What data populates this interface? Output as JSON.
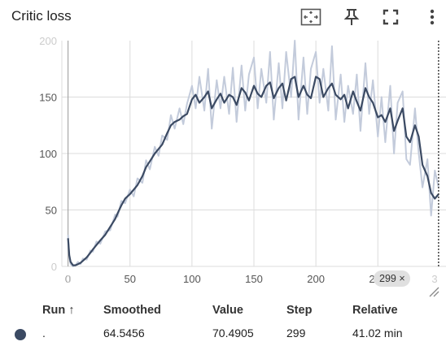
{
  "card": {
    "title": "Critic loss"
  },
  "toolbar": {
    "icons": [
      "fit-domain-icon",
      "pin-icon",
      "fullscreen-icon",
      "more-vert-icon"
    ]
  },
  "colors": {
    "line": "#3b4a63",
    "raw_line": "#c3cbdb",
    "grid": "#dcdcdc",
    "axis_text": "#555555",
    "axis_text_faint": "#cccccc",
    "badge_bg": "#e0e0e0"
  },
  "chart_data": {
    "type": "line",
    "title": "Critic loss",
    "xlabel": "",
    "ylabel": "",
    "xlim": [
      -5,
      305
    ],
    "ylim": [
      0,
      200
    ],
    "x_ticks": [
      "0",
      "50",
      "100",
      "150",
      "200",
      "250"
    ],
    "x_ticks_faint": [
      "0",
      "3"
    ],
    "y_ticks": [
      "50",
      "100",
      "150"
    ],
    "y_ticks_faint": [
      "0",
      "200"
    ],
    "grid": true,
    "legend": "none",
    "cursor_step": 299,
    "cursor_label": "299 ×",
    "series": [
      {
        "role": "smoothed",
        "x": [
          0,
          1,
          2,
          4,
          6,
          8,
          10,
          12,
          15,
          18,
          20,
          23,
          26,
          30,
          34,
          38,
          40,
          43,
          46,
          50,
          53,
          56,
          60,
          63,
          66,
          70,
          73,
          76,
          80,
          83,
          86,
          90,
          93,
          96,
          100,
          103,
          106,
          110,
          113,
          116,
          120,
          123,
          126,
          130,
          133,
          136,
          140,
          143,
          146,
          150,
          153,
          156,
          160,
          163,
          166,
          170,
          173,
          176,
          180,
          183,
          186,
          190,
          193,
          196,
          200,
          203,
          206,
          210,
          213,
          216,
          220,
          223,
          226,
          230,
          233,
          236,
          240,
          243,
          246,
          250,
          253,
          256,
          260,
          263,
          266,
          270,
          273,
          276,
          280,
          283,
          286,
          290,
          293,
          296,
          299
        ],
        "y": [
          25,
          10,
          4,
          1,
          1,
          2,
          3,
          5,
          8,
          12,
          15,
          19,
          23,
          28,
          35,
          42,
          47,
          54,
          60,
          64,
          68,
          72,
          80,
          88,
          93,
          100,
          104,
          108,
          118,
          125,
          128,
          130,
          133,
          135,
          148,
          152,
          145,
          150,
          155,
          140,
          148,
          153,
          145,
          152,
          150,
          143,
          158,
          154,
          147,
          160,
          153,
          150,
          160,
          163,
          149,
          158,
          162,
          147,
          166,
          168,
          150,
          160,
          152,
          149,
          168,
          166,
          150,
          158,
          162,
          152,
          148,
          152,
          140,
          155,
          146,
          138,
          158,
          150,
          145,
          132,
          134,
          128,
          140,
          120,
          129,
          140,
          115,
          110,
          125,
          115,
          90,
          80,
          65,
          60,
          64
        ]
      },
      {
        "role": "raw",
        "x": [
          0,
          1,
          2,
          4,
          6,
          8,
          10,
          12,
          15,
          18,
          20,
          23,
          26,
          30,
          34,
          38,
          40,
          43,
          46,
          50,
          53,
          56,
          60,
          63,
          66,
          70,
          73,
          76,
          80,
          83,
          86,
          90,
          93,
          96,
          100,
          103,
          106,
          110,
          113,
          116,
          120,
          123,
          126,
          130,
          133,
          136,
          140,
          143,
          146,
          150,
          153,
          156,
          160,
          163,
          166,
          170,
          173,
          176,
          180,
          183,
          186,
          190,
          193,
          196,
          200,
          203,
          206,
          210,
          213,
          216,
          220,
          223,
          226,
          230,
          233,
          236,
          240,
          243,
          246,
          250,
          253,
          256,
          260,
          263,
          266,
          270,
          273,
          276,
          280,
          283,
          286,
          290,
          293,
          296,
          299
        ],
        "y": [
          28,
          8,
          2,
          0,
          1,
          4,
          2,
          7,
          6,
          14,
          13,
          22,
          20,
          31,
          32,
          46,
          44,
          58,
          56,
          68,
          62,
          78,
          74,
          94,
          86,
          106,
          98,
          116,
          112,
          134,
          122,
          140,
          126,
          144,
          160,
          140,
          168,
          138,
          175,
          122,
          165,
          140,
          168,
          135,
          176,
          128,
          178,
          138,
          170,
          185,
          140,
          175,
          145,
          190,
          130,
          180,
          140,
          190,
          150,
          200,
          130,
          185,
          135,
          175,
          190,
          145,
          175,
          138,
          195,
          130,
          170,
          128,
          160,
          135,
          170,
          120,
          180,
          135,
          165,
          115,
          150,
          110,
          160,
          100,
          145,
          155,
          95,
          90,
          140,
          100,
          70,
          95,
          45,
          85,
          70
        ]
      }
    ],
    "table": {
      "headers": [
        "Run ↑",
        "Smoothed",
        "Value",
        "Step",
        "Relative"
      ],
      "rows": [
        {
          "run": ".",
          "smoothed": "64.5456",
          "value": "70.4905",
          "step": "299",
          "relative": "41.02 min"
        }
      ]
    }
  }
}
